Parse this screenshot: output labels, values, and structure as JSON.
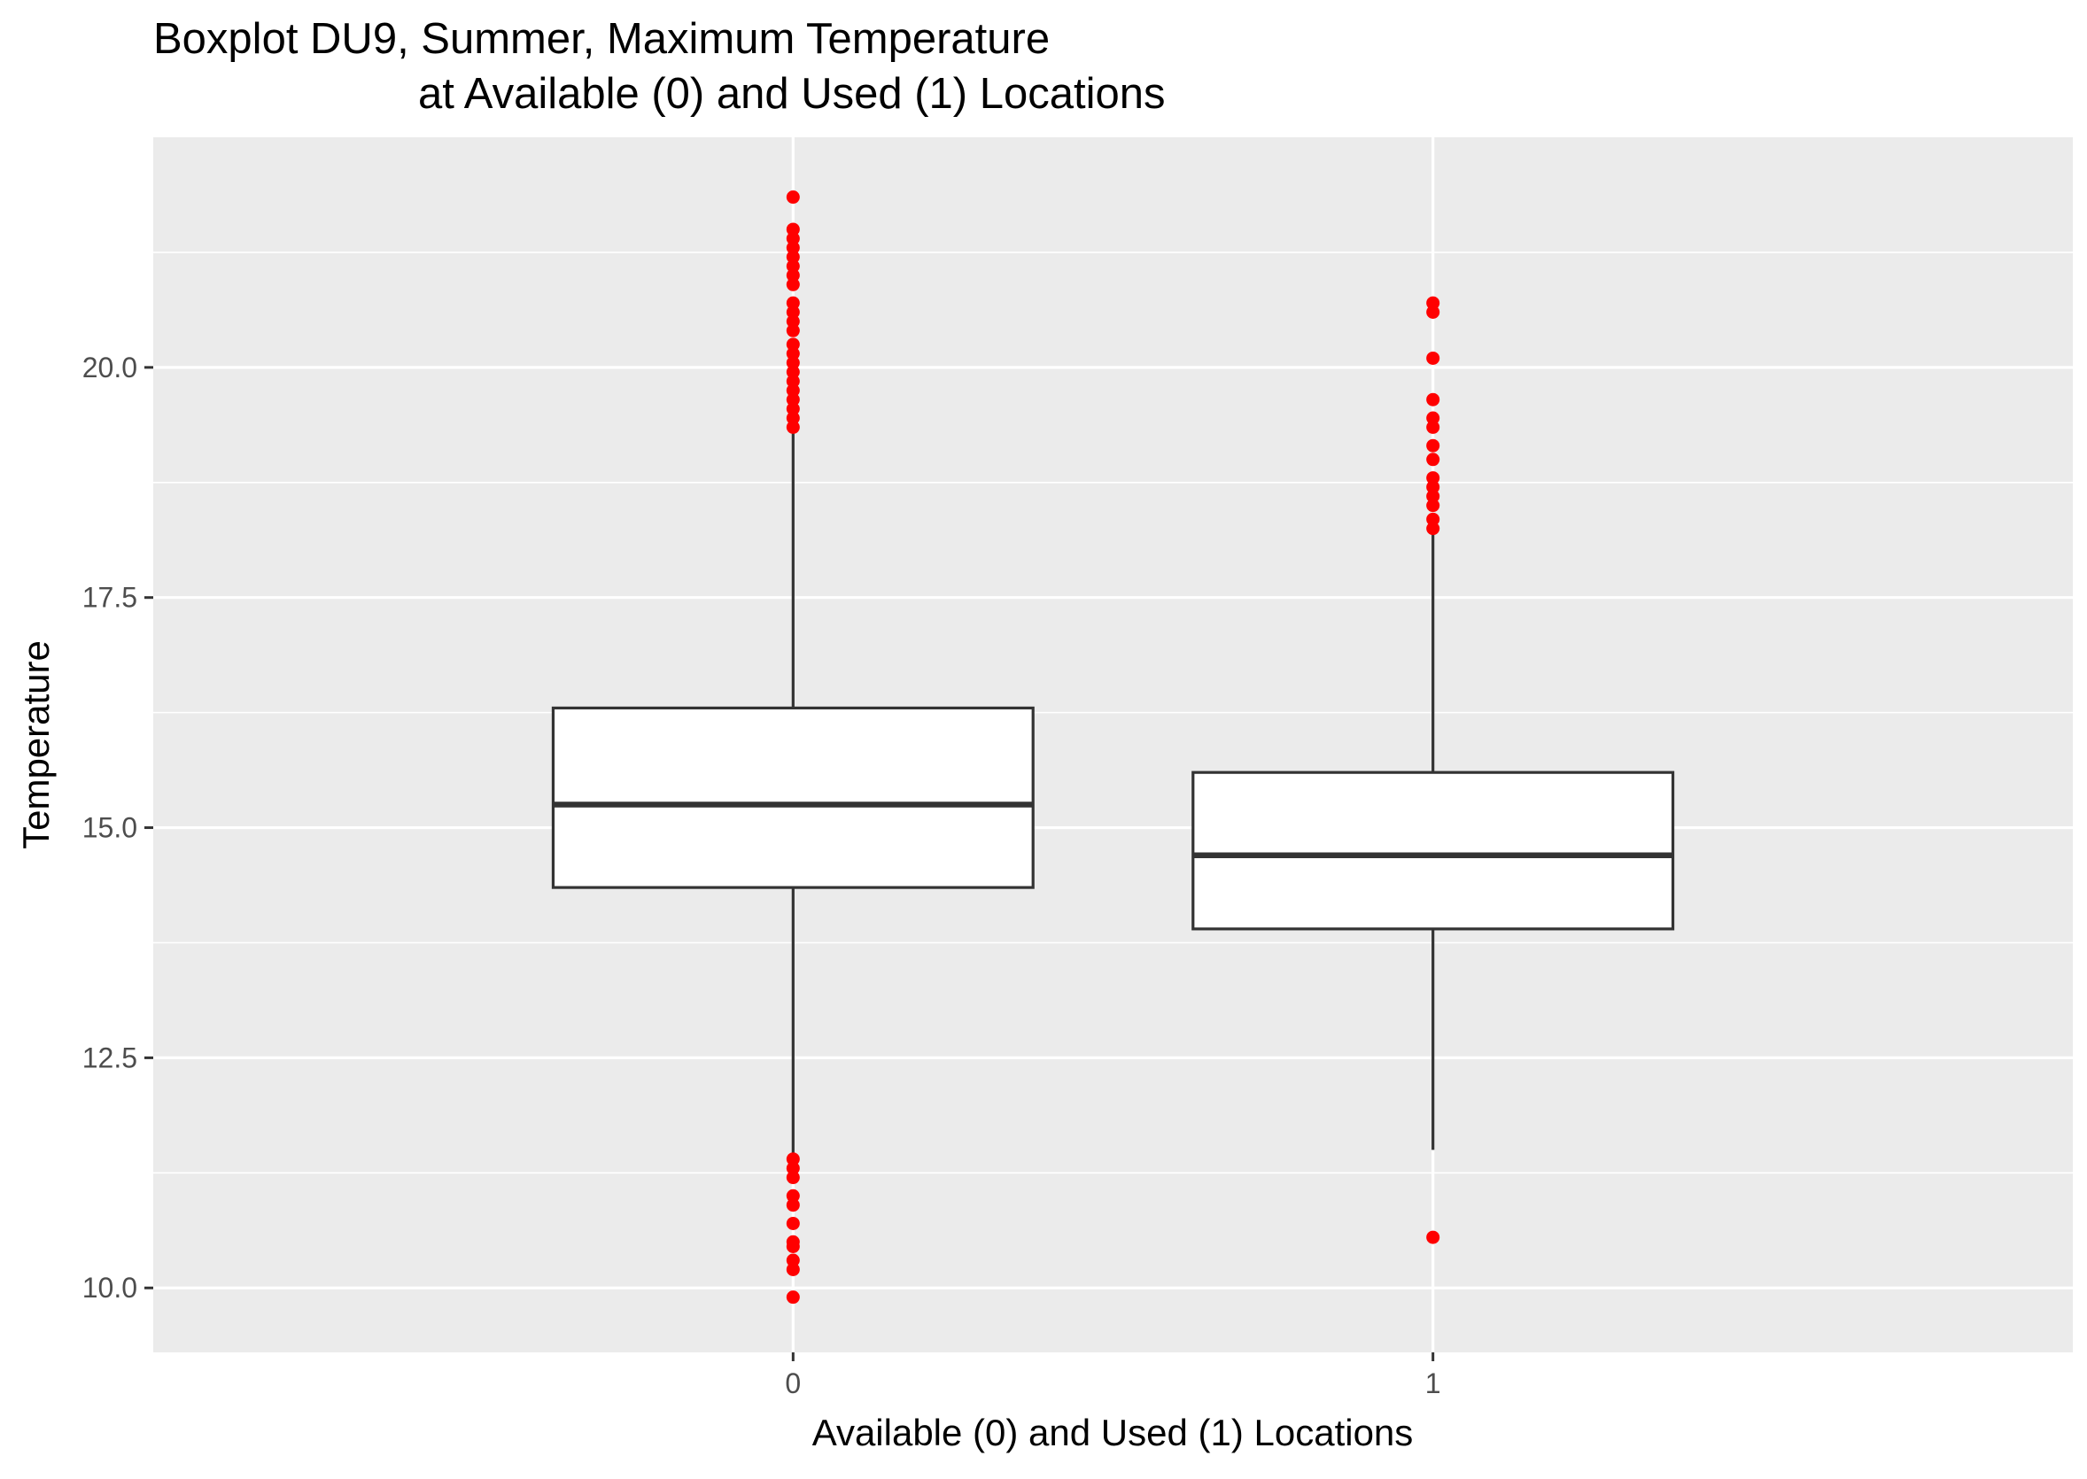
{
  "chart_data": {
    "type": "boxplot",
    "title": "Boxplot DU9, Summer, Maximum Temperature",
    "subtitle": "at Available (0) and Used (1) Locations",
    "xlabel": "Available (0) and Used (1) Locations",
    "ylabel": "Temperature",
    "categories": [
      "0",
      "1"
    ],
    "ylim": [
      9.3,
      22.5
    ],
    "yticks": [
      "10.0",
      "12.5",
      "15.0",
      "17.5",
      "20.0"
    ],
    "grid": true,
    "outlier_color": "#ff0000",
    "panel_color": "#ebebeb",
    "boxes": [
      {
        "category": "0",
        "whisker_low": 11.45,
        "q1": 14.35,
        "median": 15.25,
        "q3": 16.3,
        "whisker_high": 19.3,
        "outliers": [
          21.85,
          21.5,
          21.4,
          21.3,
          21.2,
          21.1,
          21.0,
          20.9,
          20.7,
          20.6,
          20.5,
          20.4,
          20.25,
          20.15,
          20.05,
          19.95,
          19.85,
          19.75,
          19.65,
          19.55,
          19.45,
          19.35,
          11.4,
          11.3,
          11.2,
          11.0,
          10.9,
          10.7,
          10.5,
          10.45,
          10.3,
          10.2,
          9.9
        ]
      },
      {
        "category": "1",
        "whisker_low": 11.5,
        "q1": 13.9,
        "median": 14.7,
        "q3": 15.6,
        "whisker_high": 18.2,
        "outliers": [
          20.7,
          20.6,
          20.1,
          19.65,
          19.45,
          19.35,
          19.15,
          19.0,
          18.8,
          18.7,
          18.6,
          18.5,
          18.35,
          18.25,
          10.55
        ]
      }
    ]
  }
}
